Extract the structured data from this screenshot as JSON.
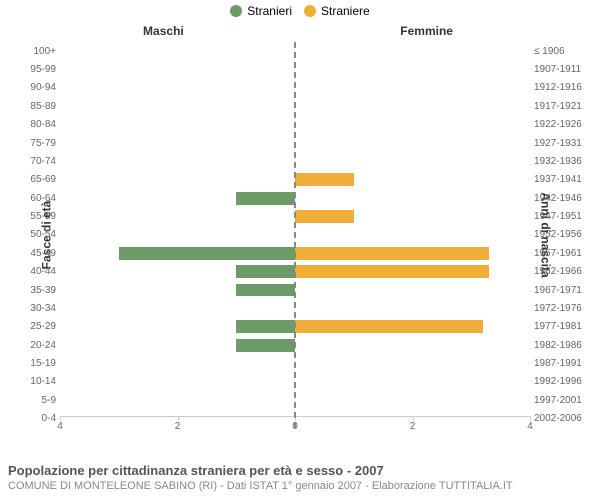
{
  "legend": {
    "male": {
      "label": "Stranieri",
      "color": "#6d9b68"
    },
    "female": {
      "label": "Straniere",
      "color": "#f0ad3a"
    }
  },
  "chart": {
    "type": "pyramid-bar",
    "x_max": 4,
    "x_ticks": [
      4,
      2,
      0,
      2,
      4
    ],
    "left_title": "Maschi",
    "right_title": "Femmine",
    "y_title_left": "Fasce di età",
    "y_title_right": "Anni di nascita",
    "center_line_color": "#888",
    "bar_height_pct": 70,
    "grid_color": "#ccc",
    "tick_font_color": "#666",
    "rows": [
      {
        "age": "100+",
        "year": "≤ 1906",
        "m": 0,
        "f": 0
      },
      {
        "age": "95-99",
        "year": "1907-1911",
        "m": 0,
        "f": 0
      },
      {
        "age": "90-94",
        "year": "1912-1916",
        "m": 0,
        "f": 0
      },
      {
        "age": "85-89",
        "year": "1917-1921",
        "m": 0,
        "f": 0
      },
      {
        "age": "80-84",
        "year": "1922-1926",
        "m": 0,
        "f": 0
      },
      {
        "age": "75-79",
        "year": "1927-1931",
        "m": 0,
        "f": 0
      },
      {
        "age": "70-74",
        "year": "1932-1936",
        "m": 0,
        "f": 0
      },
      {
        "age": "65-69",
        "year": "1937-1941",
        "m": 0,
        "f": 1
      },
      {
        "age": "60-64",
        "year": "1942-1946",
        "m": 1,
        "f": 0
      },
      {
        "age": "55-59",
        "year": "1947-1951",
        "m": 0,
        "f": 1
      },
      {
        "age": "50-54",
        "year": "1952-1956",
        "m": 0,
        "f": 0
      },
      {
        "age": "45-49",
        "year": "1957-1961",
        "m": 3,
        "f": 3.3
      },
      {
        "age": "40-44",
        "year": "1962-1966",
        "m": 1,
        "f": 3.3
      },
      {
        "age": "35-39",
        "year": "1967-1971",
        "m": 1,
        "f": 0
      },
      {
        "age": "30-34",
        "year": "1972-1976",
        "m": 0,
        "f": 0
      },
      {
        "age": "25-29",
        "year": "1977-1981",
        "m": 1,
        "f": 3.2
      },
      {
        "age": "20-24",
        "year": "1982-1986",
        "m": 1,
        "f": 0
      },
      {
        "age": "15-19",
        "year": "1987-1991",
        "m": 0,
        "f": 0
      },
      {
        "age": "10-14",
        "year": "1992-1996",
        "m": 0,
        "f": 0
      },
      {
        "age": "5-9",
        "year": "1997-2001",
        "m": 0,
        "f": 0
      },
      {
        "age": "0-4",
        "year": "2002-2006",
        "m": 0,
        "f": 0
      }
    ]
  },
  "footer": {
    "title": "Popolazione per cittadinanza straniera per età e sesso - 2007",
    "subtitle": "COMUNE DI MONTELEONE SABINO (RI) - Dati ISTAT 1° gennaio 2007 - Elaborazione TUTTITALIA.IT"
  }
}
